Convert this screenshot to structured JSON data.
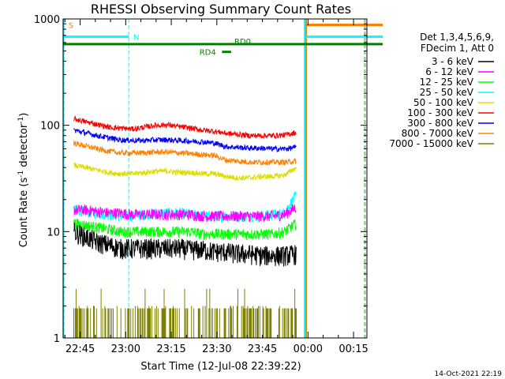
{
  "chart_data": {
    "type": "line",
    "title": "RHESSI Observing Summary Count Rates",
    "xlabel": "Start Time (12-Jul-08 22:39:22)",
    "ylabel_main": "Count Rate (s",
    "ylabel_sup1": "-1",
    "ylabel_mid": " detector",
    "ylabel_sup2": "-1",
    "ylabel_end": ")",
    "yscale": "log",
    "ylim": [
      1,
      1000
    ],
    "xlim_minutes": [
      0,
      100
    ],
    "x_ticks": [
      {
        "label": "22:45",
        "min": 5.6
      },
      {
        "label": "23:00",
        "min": 20.6
      },
      {
        "label": "23:15",
        "min": 35.6
      },
      {
        "label": "23:30",
        "min": 50.6
      },
      {
        "label": "23:45",
        "min": 65.6
      },
      {
        "label": "00:00",
        "min": 80.6
      },
      {
        "label": "00:15",
        "min": 95.6
      }
    ],
    "y_ticks": [
      {
        "label": "1",
        "value": 1
      },
      {
        "label": "10",
        "value": 10
      },
      {
        "label": "100",
        "value": 100
      },
      {
        "label": "1000",
        "value": 1000
      }
    ],
    "legend_header": [
      "Det 1,3,4,5,6,9,",
      "FDecim 1, Att 0"
    ],
    "data_window_minutes": [
      3.5,
      76.8
    ],
    "series": [
      {
        "name": "3 - 6 keV",
        "color": "#000000",
        "values": [
          10,
          9,
          8,
          7.5,
          7,
          7,
          7,
          7,
          7,
          7,
          6.8,
          6.8,
          6.5,
          6.5,
          6.2,
          6.2,
          6,
          6,
          6,
          6.2
        ]
      },
      {
        "name": "6 - 12 keV",
        "color": "#ff00ff",
        "values": [
          16,
          16,
          15.5,
          15,
          15,
          14.5,
          14.5,
          14.5,
          14.5,
          14.5,
          14.5,
          14,
          14,
          14,
          14,
          14,
          14,
          14,
          14.5,
          17
        ]
      },
      {
        "name": "12 - 25 keV",
        "color": "#00ff00",
        "values": [
          12,
          11.5,
          11,
          10.5,
          10,
          10,
          10,
          10,
          10,
          10,
          10,
          9.5,
          9.5,
          9.5,
          9.5,
          9.5,
          9.5,
          9.5,
          10,
          12
        ]
      },
      {
        "name": "25 - 50 keV",
        "color": "#00ffff",
        "values": [
          16,
          15.5,
          15,
          14.5,
          14,
          14,
          14.5,
          15,
          15,
          15,
          14.5,
          14,
          14,
          14,
          14,
          14,
          14,
          14.5,
          15,
          22
        ]
      },
      {
        "name": "50 - 100 keV",
        "color": "#dddd00",
        "values": [
          42,
          40,
          38,
          36,
          35,
          35,
          36,
          37,
          37,
          36,
          36,
          35,
          35,
          33,
          32,
          32,
          33,
          33,
          34,
          40
        ]
      },
      {
        "name": "100 - 300 keV",
        "color": "#ff0000",
        "values": [
          115,
          108,
          102,
          96,
          94,
          92,
          96,
          100,
          101,
          97,
          94,
          90,
          88,
          84,
          82,
          80,
          80,
          80,
          81,
          86
        ]
      },
      {
        "name": "300 - 800 keV",
        "color": "#0000ff",
        "values": [
          90,
          85,
          80,
          76,
          73,
          72,
          72,
          73,
          73,
          72,
          71,
          70,
          68,
          63,
          62,
          61,
          61,
          60,
          60,
          62
        ]
      },
      {
        "name": "800 - 7000 keV",
        "color": "#ff8000",
        "values": [
          68,
          64,
          60,
          57,
          55,
          55,
          55,
          56,
          56,
          55,
          54,
          53,
          52,
          47,
          46,
          45,
          45,
          45,
          45,
          46
        ]
      },
      {
        "name": "7000 - 15000 keV",
        "color": "#808000",
        "values": [
          1.3,
          1.3,
          1.2,
          1.2,
          1.3,
          1.4,
          1.4,
          1.5,
          1.5,
          1.5,
          1.4,
          1.4,
          1.3,
          1.3,
          1.3,
          1.3,
          1.3,
          1.3,
          1.3,
          1.3
        ]
      }
    ],
    "annotations": [
      {
        "label": "S",
        "color": "#ff8000",
        "x_min": 0.2,
        "y": 880
      },
      {
        "label": "N",
        "color": "#00ffff",
        "x_min": 21.6,
        "y": 680
      },
      {
        "label": "RD0",
        "color": "#008000",
        "x_min": 54.8,
        "y": 620
      },
      {
        "label": "RD4",
        "color": "#008000",
        "x_min": 43.3,
        "y": 490
      }
    ],
    "timestamp": "14-Oct-2021 22:19"
  }
}
